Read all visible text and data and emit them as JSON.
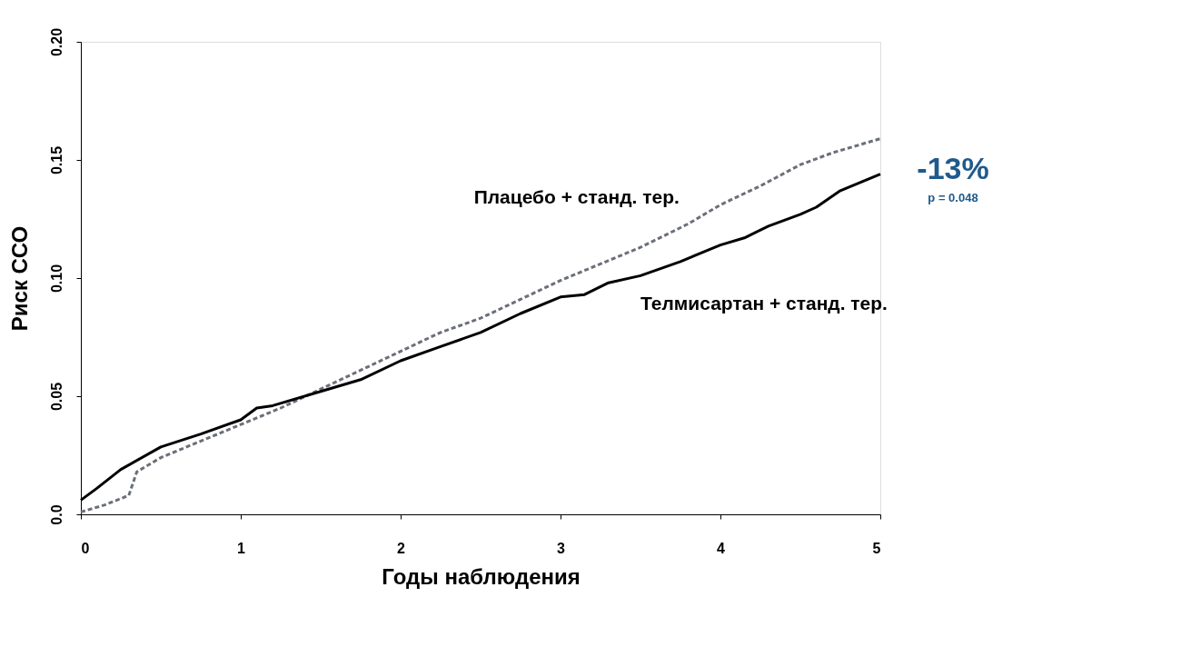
{
  "chart_data": {
    "type": "line",
    "xlabel": "Годы наблюдения",
    "ylabel": "Риск ССО",
    "xlim": [
      0,
      5
    ],
    "xticks": [
      0,
      1,
      2,
      3,
      4,
      5
    ],
    "ylim": [
      0,
      0.2
    ],
    "yticks": [
      {
        "value": 0,
        "label": "0.0"
      },
      {
        "value": 0.05,
        "label": "0.05"
      },
      {
        "value": 0.1,
        "label": "0.10"
      },
      {
        "value": 0.15,
        "label": "0.15"
      },
      {
        "value": 0.2,
        "label": "0.20"
      }
    ],
    "grid": false,
    "legend": false,
    "marker": "none",
    "series": [
      {
        "name": "Плацебо + станд. тер.",
        "color": "#6b6f78",
        "line_style": "dashed",
        "x": [
          0,
          0.15,
          0.3,
          0.35,
          0.5,
          0.75,
          1,
          1.25,
          1.5,
          1.75,
          2,
          2.25,
          2.5,
          2.75,
          3,
          3.25,
          3.5,
          3.8,
          4,
          4.25,
          4.5,
          4.7,
          5
        ],
        "values": [
          0.001,
          0.004,
          0.008,
          0.018,
          0.024,
          0.031,
          0.038,
          0.045,
          0.053,
          0.061,
          0.069,
          0.077,
          0.083,
          0.091,
          0.099,
          0.106,
          0.113,
          0.123,
          0.131,
          0.139,
          0.148,
          0.153,
          0.159
        ]
      },
      {
        "name": "Телмисартан + станд. тер.",
        "color": "#000000",
        "line_style": "solid",
        "x": [
          0,
          0.1,
          0.25,
          0.5,
          0.75,
          1,
          1.1,
          1.2,
          1.5,
          1.75,
          2,
          2.25,
          2.5,
          2.75,
          3,
          3.15,
          3.3,
          3.5,
          3.75,
          4,
          4.15,
          4.3,
          4.5,
          4.6,
          4.75,
          5
        ],
        "values": [
          0.006,
          0.011,
          0.019,
          0.0285,
          0.034,
          0.04,
          0.045,
          0.046,
          0.052,
          0.057,
          0.065,
          0.071,
          0.077,
          0.085,
          0.092,
          0.093,
          0.098,
          0.101,
          0.107,
          0.114,
          0.117,
          0.122,
          0.127,
          0.13,
          0.137,
          0.144
        ]
      }
    ],
    "annotations": [
      "-13%",
      "p = 0.048"
    ]
  }
}
